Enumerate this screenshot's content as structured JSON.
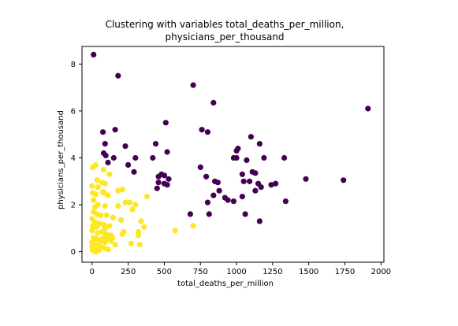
{
  "chart_data": {
    "type": "scatter",
    "title_line1": "Clustering with variables total_deaths_per_million,",
    "title_line2": "physicians_per_thousand",
    "xlabel": "total_deaths_per_million",
    "ylabel": "physicians_per_thousand",
    "xlim": [
      -70,
      2020
    ],
    "ylim": [
      -0.45,
      8.75
    ],
    "x_ticks": [
      "0",
      "250",
      "500",
      "750",
      "1000",
      "1250",
      "1500",
      "1750",
      "2000"
    ],
    "y_ticks": [
      "0",
      "2",
      "4",
      "6",
      "8"
    ],
    "grid": false,
    "legend": "none",
    "colors": {
      "cluster_0": "#440154",
      "cluster_1": "#fde725"
    },
    "series": [
      {
        "cluster": 0,
        "color": "#440154",
        "points": [
          [
            10,
            8.4
          ],
          [
            180,
            7.5
          ],
          [
            700,
            7.1
          ],
          [
            840,
            6.35
          ],
          [
            1910,
            6.1
          ],
          [
            160,
            5.2
          ],
          [
            510,
            5.5
          ],
          [
            75,
            5.1
          ],
          [
            760,
            5.2
          ],
          [
            800,
            5.1
          ],
          [
            90,
            4.6
          ],
          [
            230,
            4.5
          ],
          [
            440,
            4.6
          ],
          [
            1100,
            4.9
          ],
          [
            1160,
            4.6
          ],
          [
            1010,
            4.4
          ],
          [
            1000,
            4.3
          ],
          [
            520,
            4.25
          ],
          [
            80,
            4.2
          ],
          [
            95,
            4.1
          ],
          [
            150,
            4.0
          ],
          [
            300,
            4.0
          ],
          [
            420,
            4.0
          ],
          [
            1070,
            3.9
          ],
          [
            1190,
            4.0
          ],
          [
            1330,
            4.0
          ],
          [
            110,
            3.8
          ],
          [
            250,
            3.7
          ],
          [
            980,
            4.0
          ],
          [
            1000,
            4.0
          ],
          [
            750,
            3.6
          ],
          [
            1110,
            3.4
          ],
          [
            1130,
            3.35
          ],
          [
            290,
            3.4
          ],
          [
            480,
            3.3
          ],
          [
            500,
            3.25
          ],
          [
            1040,
            3.3
          ],
          [
            460,
            3.2
          ],
          [
            530,
            3.1
          ],
          [
            790,
            3.2
          ],
          [
            1480,
            3.1
          ],
          [
            1740,
            3.05
          ],
          [
            460,
            2.95
          ],
          [
            500,
            2.9
          ],
          [
            520,
            2.85
          ],
          [
            850,
            3.0
          ],
          [
            870,
            2.95
          ],
          [
            1050,
            3.0
          ],
          [
            1090,
            3.0
          ],
          [
            1150,
            2.9
          ],
          [
            1240,
            2.85
          ],
          [
            1270,
            2.9
          ],
          [
            450,
            2.7
          ],
          [
            880,
            2.6
          ],
          [
            1170,
            2.75
          ],
          [
            1130,
            2.6
          ],
          [
            840,
            2.4
          ],
          [
            920,
            2.3
          ],
          [
            1040,
            2.35
          ],
          [
            940,
            2.2
          ],
          [
            980,
            2.15
          ],
          [
            1340,
            2.15
          ],
          [
            800,
            2.1
          ],
          [
            680,
            1.6
          ],
          [
            810,
            1.6
          ],
          [
            1060,
            1.6
          ],
          [
            1160,
            1.3
          ]
        ]
      },
      {
        "cluster": 1,
        "color": "#fde725",
        "points": [
          [
            5,
            3.6
          ],
          [
            25,
            3.7
          ],
          [
            80,
            3.5
          ],
          [
            35,
            3.05
          ],
          [
            70,
            2.95
          ],
          [
            90,
            2.9
          ],
          [
            120,
            3.3
          ],
          [
            0,
            2.8
          ],
          [
            40,
            2.75
          ],
          [
            180,
            2.6
          ],
          [
            210,
            2.65
          ],
          [
            5,
            2.5
          ],
          [
            25,
            2.45
          ],
          [
            75,
            2.55
          ],
          [
            85,
            2.5
          ],
          [
            110,
            2.4
          ],
          [
            300,
            2.0
          ],
          [
            380,
            2.35
          ],
          [
            10,
            2.2
          ],
          [
            40,
            2.0
          ],
          [
            20,
            1.9
          ],
          [
            90,
            1.95
          ],
          [
            180,
            1.95
          ],
          [
            230,
            2.1
          ],
          [
            260,
            2.1
          ],
          [
            280,
            1.8
          ],
          [
            10,
            1.7
          ],
          [
            35,
            1.6
          ],
          [
            60,
            1.55
          ],
          [
            100,
            1.55
          ],
          [
            145,
            1.45
          ],
          [
            200,
            1.35
          ],
          [
            340,
            1.3
          ],
          [
            0,
            1.4
          ],
          [
            20,
            1.25
          ],
          [
            50,
            1.2
          ],
          [
            80,
            1.15
          ],
          [
            5,
            1.1
          ],
          [
            30,
            1.05
          ],
          [
            90,
            1.0
          ],
          [
            120,
            1.1
          ],
          [
            360,
            1.05
          ],
          [
            220,
            0.85
          ],
          [
            210,
            0.75
          ],
          [
            320,
            0.85
          ],
          [
            320,
            0.7
          ],
          [
            575,
            0.9
          ],
          [
            700,
            1.1
          ],
          [
            0,
            0.9
          ],
          [
            40,
            0.8
          ],
          [
            70,
            0.85
          ],
          [
            100,
            0.75
          ],
          [
            130,
            0.7
          ],
          [
            10,
            0.6
          ],
          [
            30,
            0.55
          ],
          [
            60,
            0.5
          ],
          [
            80,
            0.6
          ],
          [
            110,
            0.55
          ],
          [
            140,
            0.6
          ],
          [
            0,
            0.4
          ],
          [
            20,
            0.3
          ],
          [
            50,
            0.35
          ],
          [
            90,
            0.4
          ],
          [
            130,
            0.45
          ],
          [
            160,
            0.3
          ],
          [
            270,
            0.35
          ],
          [
            330,
            0.3
          ],
          [
            0,
            0.2
          ],
          [
            15,
            0.15
          ],
          [
            35,
            0.1
          ],
          [
            60,
            0.2
          ],
          [
            85,
            0.15
          ],
          [
            110,
            0.1
          ],
          [
            5,
            0.05
          ],
          [
            25,
            0.0
          ],
          [
            45,
            0.05
          ]
        ]
      }
    ]
  }
}
